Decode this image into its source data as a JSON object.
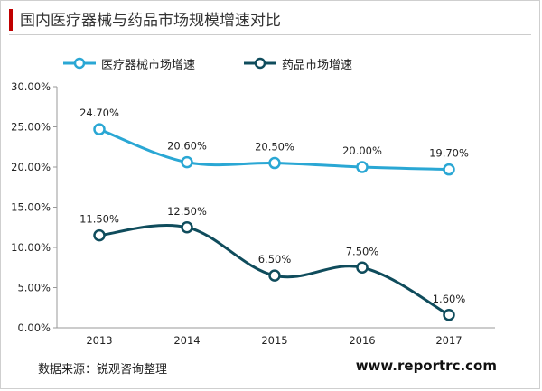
{
  "header": {
    "title": "国内医疗器械与药品市场规模增速对比",
    "accent_color": "#c00000"
  },
  "footer": {
    "source": "数据来源：锐观咨询整理",
    "website": "www.reportrc.com"
  },
  "chart_data": {
    "type": "line",
    "title": "国内医疗器械与药品市场规模增速对比",
    "categories": [
      "2013",
      "2014",
      "2015",
      "2016",
      "2017"
    ],
    "ylim": [
      0,
      30
    ],
    "yticks": [
      "0.00%",
      "5.00%",
      "10.00%",
      "15.00%",
      "20.00%",
      "25.00%",
      "30.00%"
    ],
    "grid": false,
    "legend_position": "top",
    "series": [
      {
        "name": "医疗器械市场增速",
        "color": "#2aa7d4",
        "values": [
          24.7,
          20.6,
          20.5,
          20.0,
          19.7
        ],
        "labels": [
          "24.70%",
          "20.60%",
          "20.50%",
          "20.00%",
          "19.70%"
        ]
      },
      {
        "name": "药品市场增速",
        "color": "#0f4c5c",
        "values": [
          11.5,
          12.5,
          6.5,
          7.5,
          1.6
        ],
        "labels": [
          "11.50%",
          "12.50%",
          "6.50%",
          "7.50%",
          "1.60%"
        ]
      }
    ]
  }
}
